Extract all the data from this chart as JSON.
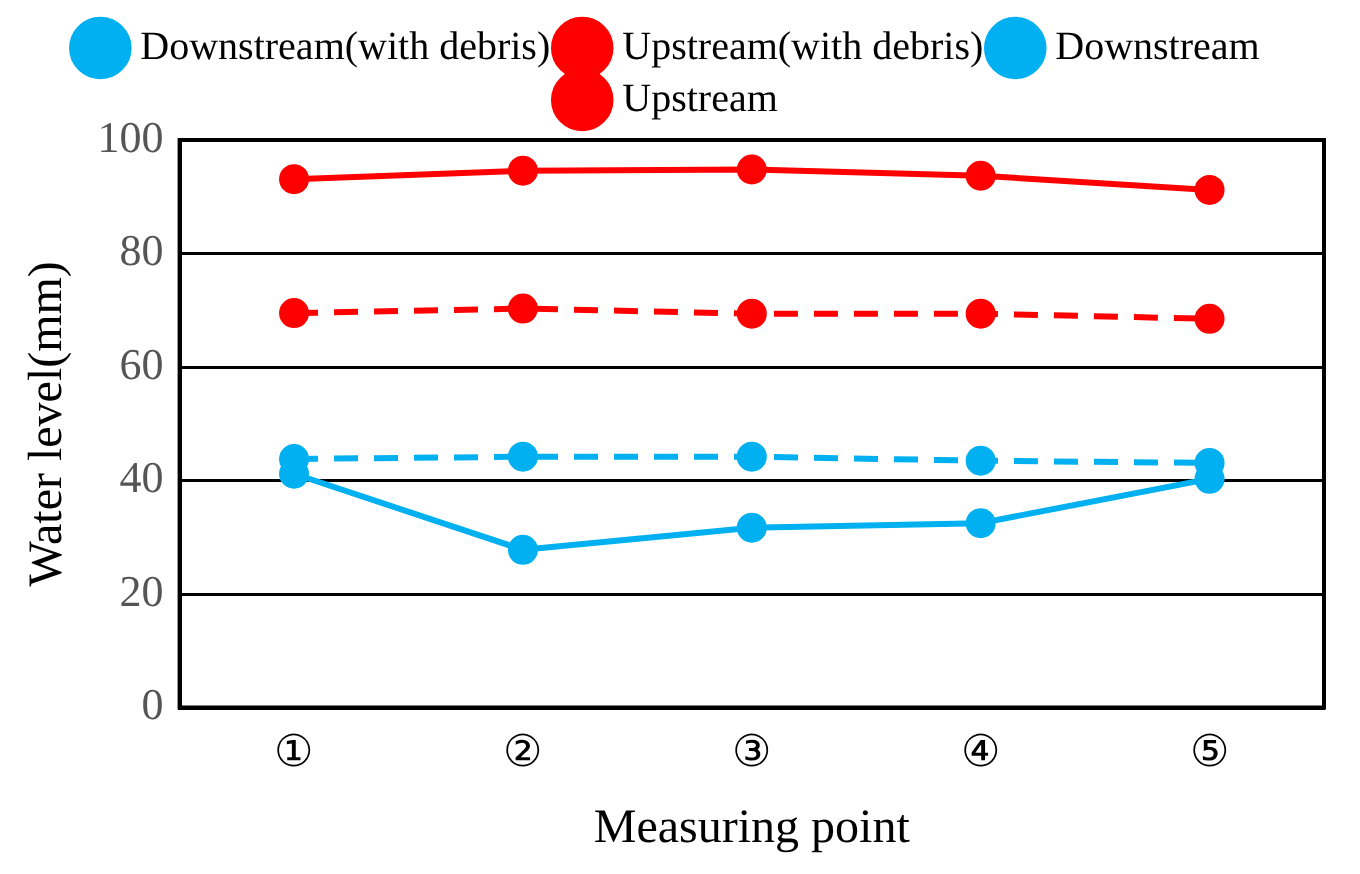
{
  "chart_data": {
    "type": "line",
    "xlabel": "Measuring point",
    "ylabel": "Water level(mm)",
    "categories": [
      "①",
      "②",
      "③",
      "④",
      "⑤"
    ],
    "series": [
      {
        "name": "Upstream",
        "color": "#ff0000",
        "line_style": "dashed",
        "values": [
          69.5,
          70.3,
          69.4,
          69.4,
          68.5
        ]
      },
      {
        "name": "Downstream",
        "color": "#00b0f0",
        "line_style": "dashed",
        "values": [
          43.8,
          44.2,
          44.2,
          43.5,
          43.1
        ]
      },
      {
        "name": "Upstream(with debris)",
        "color": "#ff0000",
        "line_style": "solid",
        "values": [
          93.1,
          94.6,
          94.8,
          93.7,
          91.2
        ]
      },
      {
        "name": "Downstream(with debris)",
        "color": "#00b0f0",
        "line_style": "solid",
        "values": [
          41.2,
          27.8,
          31.7,
          32.5,
          40.3
        ]
      }
    ],
    "ylim": [
      0,
      100
    ],
    "yticks": [
      0,
      20,
      40,
      60,
      80,
      100
    ],
    "grid": "y",
    "legend": "top",
    "marker": "circle"
  }
}
